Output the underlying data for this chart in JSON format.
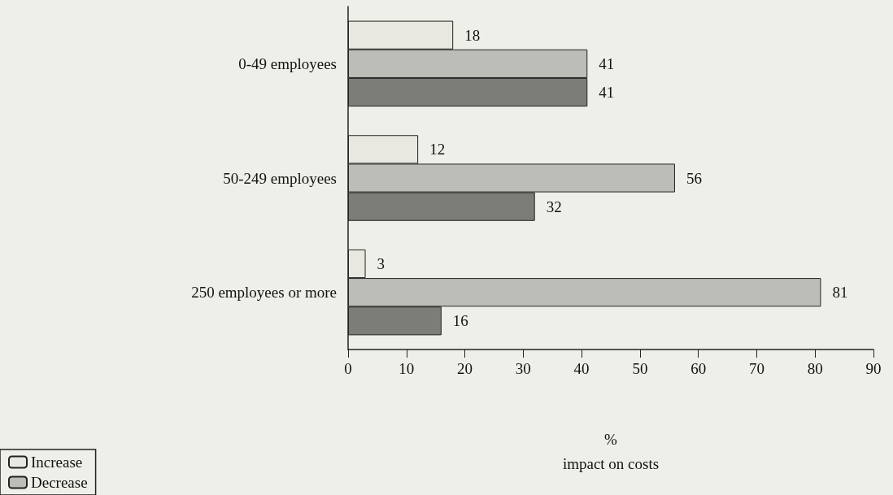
{
  "chart_data": {
    "type": "bar",
    "orientation": "horizontal",
    "xlabel": "%\nimpact on costs",
    "categories": [
      "0-49 employees",
      "50-249 employees",
      "250 employees or more"
    ],
    "series": [
      {
        "name": "Increase",
        "color": "#e8e8e0",
        "values": [
          18,
          12,
          3
        ]
      },
      {
        "name": "Decrease",
        "color": "#bdbdb8",
        "values": [
          41,
          56,
          81
        ]
      },
      {
        "color": "#7c7c78",
        "values": [
          41,
          32,
          16
        ]
      }
    ],
    "xlim": [
      0,
      90
    ],
    "xticks": [
      0,
      10,
      20,
      30,
      40,
      50,
      60,
      70,
      80,
      90
    ],
    "grid": false,
    "data_labels": true,
    "legend": "bottom left"
  }
}
